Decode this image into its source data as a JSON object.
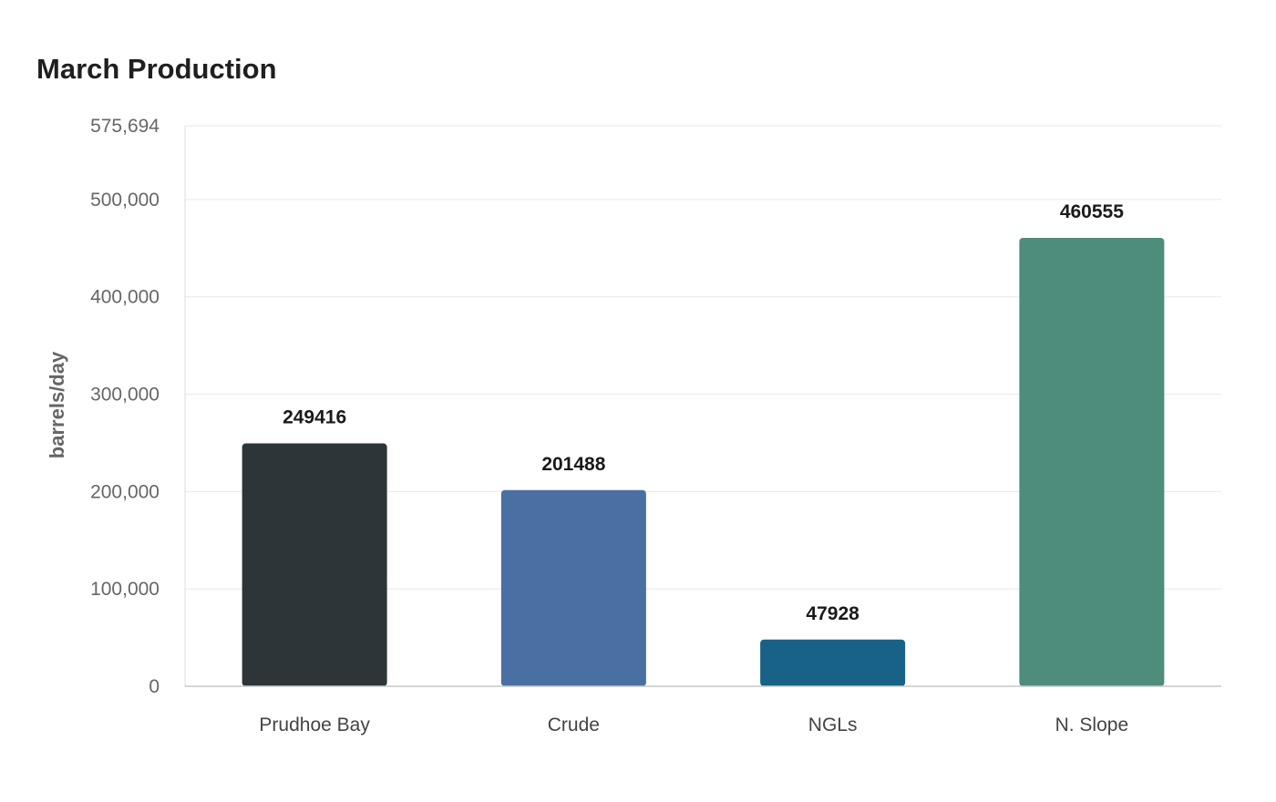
{
  "chart_data": {
    "type": "bar",
    "title": "March Production",
    "ylabel": "barrels/day",
    "xlabel": "",
    "categories": [
      "Prudhoe Bay",
      "Crude",
      "NGLs",
      "N. Slope"
    ],
    "values": [
      249416,
      201488,
      47928,
      460555
    ],
    "value_labels": [
      "249416",
      "201488",
      "47928",
      "460555"
    ],
    "colors": [
      "#2d3538",
      "#4a6fa3",
      "#186187",
      "#4e8d7b"
    ],
    "ylim": [
      0,
      575694
    ],
    "yticks": [
      0,
      100000,
      200000,
      300000,
      400000,
      500000,
      575694
    ],
    "ytick_labels": [
      "0",
      "100,000",
      "200,000",
      "300,000",
      "400,000",
      "500,000",
      "575,694"
    ],
    "grid": true,
    "legend": "none"
  }
}
